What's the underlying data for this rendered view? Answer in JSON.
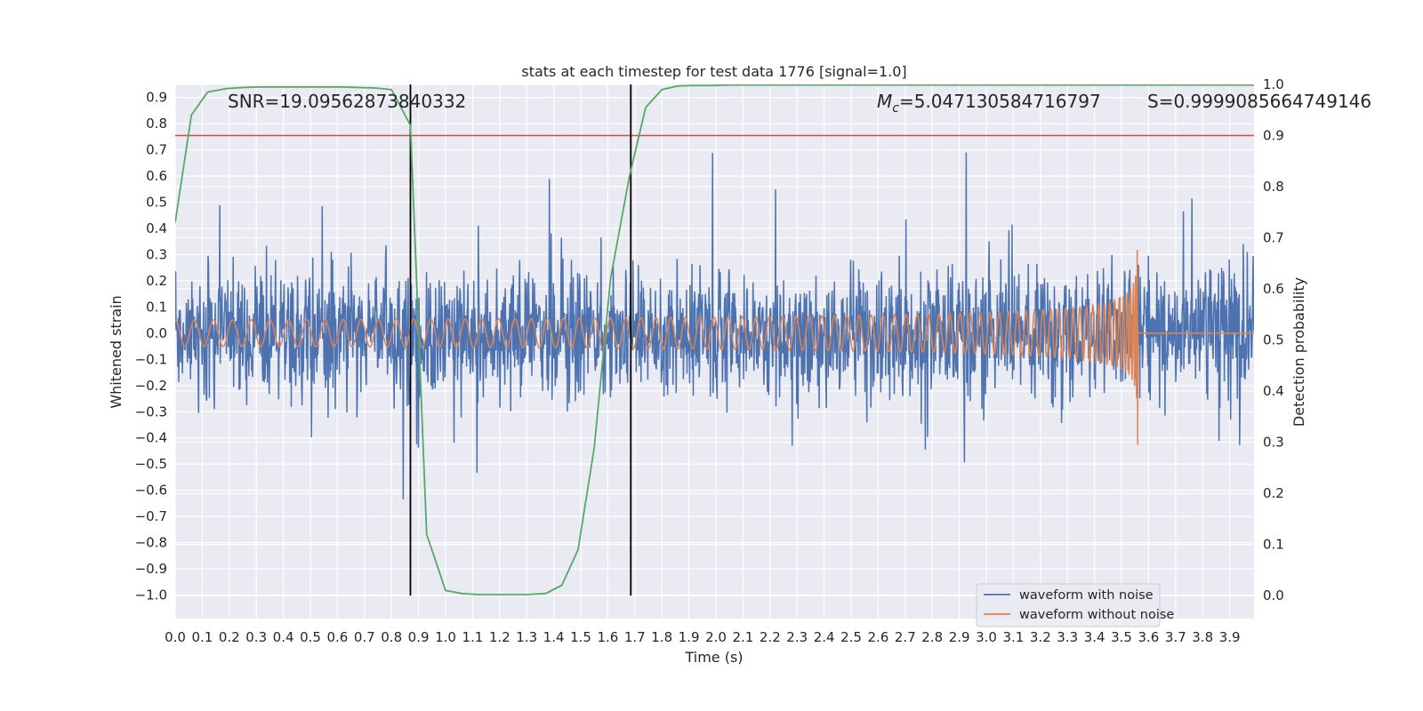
{
  "chart_data": {
    "type": "line",
    "title": "stats at each timestep for test data 1776 [signal=1.0]",
    "xlabel": "Time (s)",
    "ylabel": "Whitened strain",
    "y2label": "Detection probability",
    "xlim": [
      0.0,
      3.99
    ],
    "ylim": [
      -1.09,
      0.95
    ],
    "y2lim": [
      -0.045,
      1.0
    ],
    "xticks": [
      0.0,
      0.1,
      0.2,
      0.3,
      0.4,
      0.5,
      0.6,
      0.7,
      0.8,
      0.9,
      1.0,
      1.1,
      1.2,
      1.3,
      1.4,
      1.5,
      1.6,
      1.7,
      1.8,
      1.9,
      2.0,
      2.1,
      2.2,
      2.3,
      2.4,
      2.5,
      2.6,
      2.7,
      2.8,
      2.9,
      3.0,
      3.1,
      3.2,
      3.3,
      3.4,
      3.5,
      3.6,
      3.7,
      3.8,
      3.9
    ],
    "yticks": [
      -1.0,
      -0.9,
      -0.8,
      -0.7,
      -0.6,
      -0.5,
      -0.4,
      -0.3,
      -0.2,
      -0.1,
      0.0,
      0.1,
      0.2,
      0.3,
      0.4,
      0.5,
      0.6,
      0.7,
      0.8,
      0.9
    ],
    "y2ticks": [
      0.0,
      0.1,
      0.2,
      0.3,
      0.4,
      0.5,
      0.6,
      0.7,
      0.8,
      0.9,
      1.0
    ],
    "grid": true,
    "legend_position": "lower-right",
    "annotations": {
      "snr": "SNR=19.09562873840332",
      "mc_symbol": "M",
      "mc_sub": "c",
      "mc_value": "=5.047130584716797",
      "s": "S=0.9999085664749146"
    },
    "threshold": {
      "y2": 0.9,
      "color": "#c44e52"
    },
    "vlines": [
      0.87,
      1.685
    ],
    "noise_series": {
      "name": "waveform with noise",
      "color": "#4c72b0",
      "note": "dense noisy trace, amplitude roughly within -0.8..0.8"
    },
    "clean_series": {
      "name": "waveform without noise",
      "color": "#dd8452",
      "chirp_end": 3.56,
      "start_amplitude": 0.05,
      "peak_amplitude": 0.44
    },
    "prob_series": {
      "color": "#55a868",
      "x": [
        0.0,
        0.06,
        0.12,
        0.19,
        0.25,
        0.31,
        0.37,
        0.43,
        0.5,
        0.56,
        0.62,
        0.68,
        0.74,
        0.8,
        0.87,
        0.93,
        1.0,
        1.06,
        1.12,
        1.18,
        1.24,
        1.3,
        1.37,
        1.43,
        1.49,
        1.55,
        1.61,
        1.68,
        1.74,
        1.8,
        1.86,
        1.92,
        1.99,
        2.05,
        2.5,
        3.0,
        3.5,
        3.99
      ],
      "values": [
        0.73,
        0.94,
        0.985,
        0.992,
        0.994,
        0.995,
        0.995,
        0.995,
        0.995,
        0.995,
        0.995,
        0.994,
        0.993,
        0.99,
        0.92,
        0.12,
        0.01,
        0.004,
        0.002,
        0.002,
        0.002,
        0.002,
        0.004,
        0.02,
        0.09,
        0.29,
        0.62,
        0.82,
        0.955,
        0.99,
        0.997,
        0.998,
        0.998,
        0.999,
        0.999,
        0.999,
        0.999,
        0.999
      ]
    }
  }
}
